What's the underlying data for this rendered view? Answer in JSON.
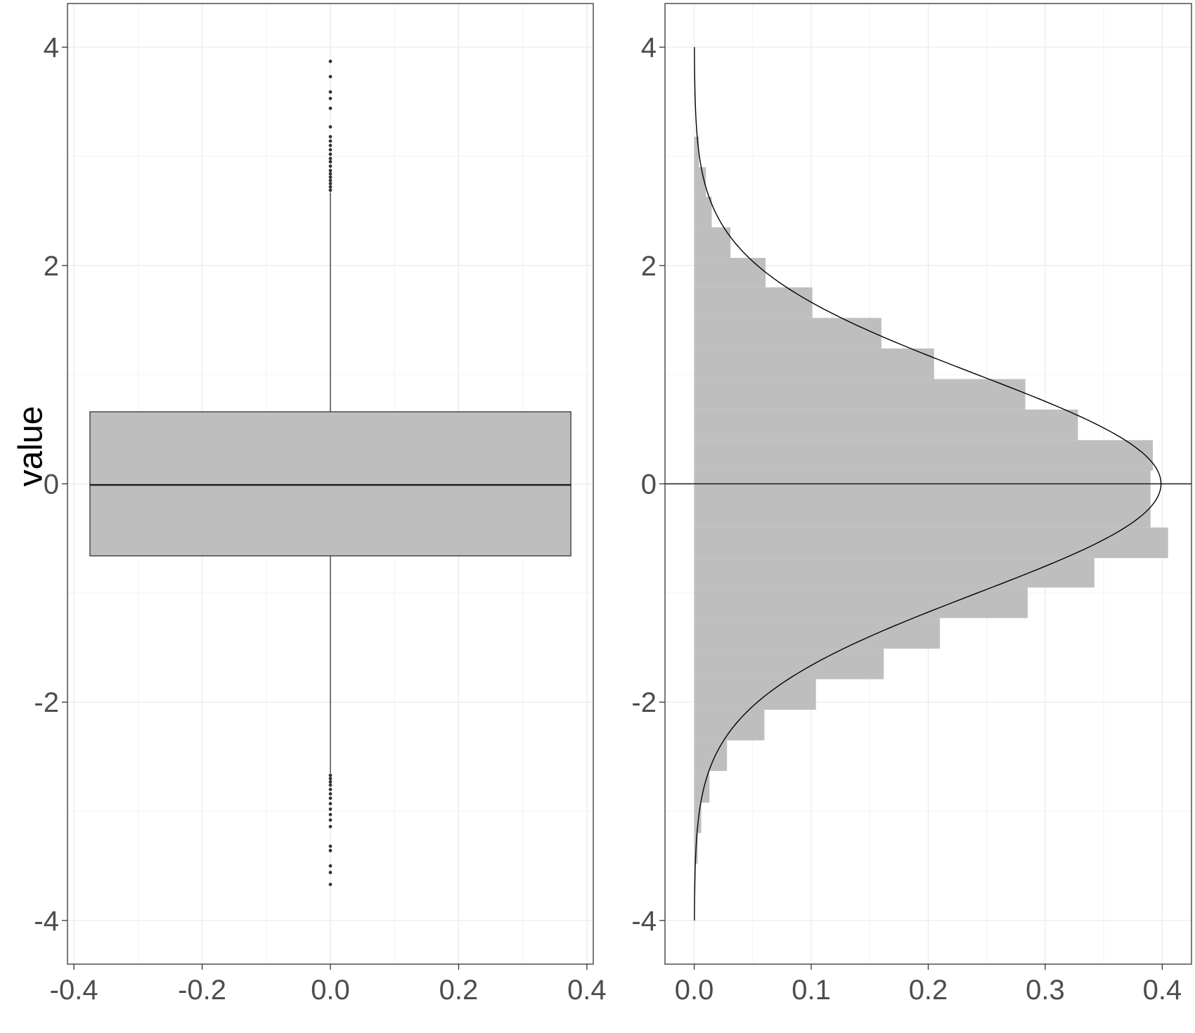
{
  "figure": {
    "ylabel": "value"
  },
  "chart_data": [
    {
      "type": "box",
      "xlabel": "",
      "ylabel": "value",
      "xlim": [
        -0.41,
        0.41
      ],
      "ylim": [
        -4.4,
        4.4
      ],
      "xticks": [
        -0.4,
        -0.2,
        0.0,
        0.2,
        0.4
      ],
      "xtick_labels": [
        "-0.4",
        "-0.2",
        "0.0",
        "0.2",
        "0.4"
      ],
      "yticks": [
        -4,
        -2,
        0,
        2,
        4
      ],
      "ytick_labels": [
        "-4",
        "-2",
        "0",
        "2",
        "4"
      ],
      "grid": true,
      "box": {
        "x": 0.0,
        "x_extent": [
          -0.375,
          0.375
        ],
        "q1": -0.66,
        "median": -0.01,
        "q3": 0.66,
        "whisker_low": -2.65,
        "whisker_high": 2.67,
        "fill": "#bebebe"
      },
      "outliers_y": [
        3.87,
        3.73,
        3.59,
        3.53,
        3.44,
        3.27,
        3.18,
        3.14,
        3.1,
        3.06,
        3.02,
        2.98,
        2.95,
        2.91,
        2.87,
        2.84,
        2.81,
        2.78,
        2.75,
        2.72,
        2.69,
        -2.67,
        -2.7,
        -2.73,
        -2.76,
        -2.8,
        -2.84,
        -2.88,
        -2.93,
        -2.98,
        -3.03,
        -3.08,
        -3.14,
        -3.32,
        -3.36,
        -3.5,
        -3.56,
        -3.67
      ]
    },
    {
      "type": "histogram",
      "orientation": "horizontal",
      "xlabel": "",
      "ylabel": "",
      "xlim": [
        -0.025,
        0.425
      ],
      "ylim": [
        -4.4,
        4.4
      ],
      "xticks": [
        0.0,
        0.1,
        0.2,
        0.3,
        0.4
      ],
      "xtick_labels": [
        "0.0",
        "0.1",
        "0.2",
        "0.3",
        "0.4"
      ],
      "yticks": [
        -4,
        -2,
        0,
        2,
        4
      ],
      "ytick_labels": [
        "-4",
        "-2",
        "0",
        "2",
        "4"
      ],
      "grid": true,
      "fill": "#bebebe",
      "bins": [
        {
          "y0": -3.76,
          "y1": -3.48,
          "density": 0.001
        },
        {
          "y0": -3.48,
          "y1": -3.2,
          "density": 0.003
        },
        {
          "y0": -3.2,
          "y1": -2.92,
          "density": 0.006
        },
        {
          "y0": -2.92,
          "y1": -2.63,
          "density": 0.013
        },
        {
          "y0": -2.63,
          "y1": -2.35,
          "density": 0.028
        },
        {
          "y0": -2.35,
          "y1": -2.07,
          "density": 0.06
        },
        {
          "y0": -2.07,
          "y1": -1.79,
          "density": 0.104
        },
        {
          "y0": -1.79,
          "y1": -1.51,
          "density": 0.162
        },
        {
          "y0": -1.51,
          "y1": -1.23,
          "density": 0.21
        },
        {
          "y0": -1.23,
          "y1": -0.95,
          "density": 0.285
        },
        {
          "y0": -0.95,
          "y1": -0.68,
          "density": 0.342
        },
        {
          "y0": -0.68,
          "y1": -0.4,
          "density": 0.405
        },
        {
          "y0": -0.4,
          "y1": 0.12,
          "density": 0.39
        },
        {
          "y0": 0.12,
          "y1": 0.4,
          "density": 0.392
        },
        {
          "y0": 0.4,
          "y1": 0.68,
          "density": 0.328
        },
        {
          "y0": 0.68,
          "y1": 0.96,
          "density": 0.283
        },
        {
          "y0": 0.96,
          "y1": 1.24,
          "density": 0.205
        },
        {
          "y0": 1.24,
          "y1": 1.52,
          "density": 0.16
        },
        {
          "y0": 1.52,
          "y1": 1.8,
          "density": 0.101
        },
        {
          "y0": 1.8,
          "y1": 2.07,
          "density": 0.061
        },
        {
          "y0": 2.07,
          "y1": 2.35,
          "density": 0.031
        },
        {
          "y0": 2.35,
          "y1": 2.63,
          "density": 0.015
        },
        {
          "y0": 2.63,
          "y1": 2.9,
          "density": 0.01
        },
        {
          "y0": 2.9,
          "y1": 3.18,
          "density": 0.004
        }
      ],
      "density_curve": {
        "distribution": "standard normal",
        "mean": 0,
        "sd": 1,
        "y_range": [
          -4,
          4
        ]
      },
      "hline_y": 0
    }
  ]
}
